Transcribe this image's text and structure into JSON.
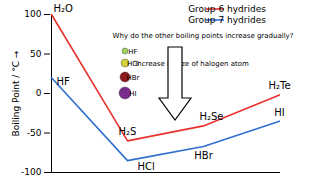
{
  "chart_data": {
    "type": "line",
    "ylabel": "Boiling Point / °C",
    "categories": [
      null,
      null,
      null,
      null
    ],
    "series": [
      {
        "name": "Group 6 hydrides",
        "color": "#e8322e",
        "values": [
          100,
          -60,
          -41,
          -2
        ],
        "point_labels": [
          "H₂O",
          "H₂S",
          "H₂Se",
          "H₂Te"
        ]
      },
      {
        "name": "Group 7 hydrides",
        "color": "#2f6fd0",
        "values": [
          20,
          -85,
          -67,
          -35
        ],
        "point_labels": [
          "HF",
          "HCl",
          "HBr",
          "HI"
        ]
      }
    ],
    "ylim": [
      -100,
      100
    ],
    "yticks": [
      -100,
      -50,
      0,
      50,
      100
    ],
    "grid": false,
    "legend": "top-right",
    "tick_labels": "y",
    "annotations": [
      "Why do the other boiling points increase gradually?",
      "Increase in size of halogen atom"
    ],
    "key": [
      {
        "name": "HF",
        "color": "#9fd35a"
      },
      {
        "name": "HCl",
        "color": "#d2d43a"
      },
      {
        "name": "HBr",
        "color": "#8e1b1b"
      },
      {
        "name": "HI",
        "color": "#7a2c8c"
      }
    ]
  }
}
